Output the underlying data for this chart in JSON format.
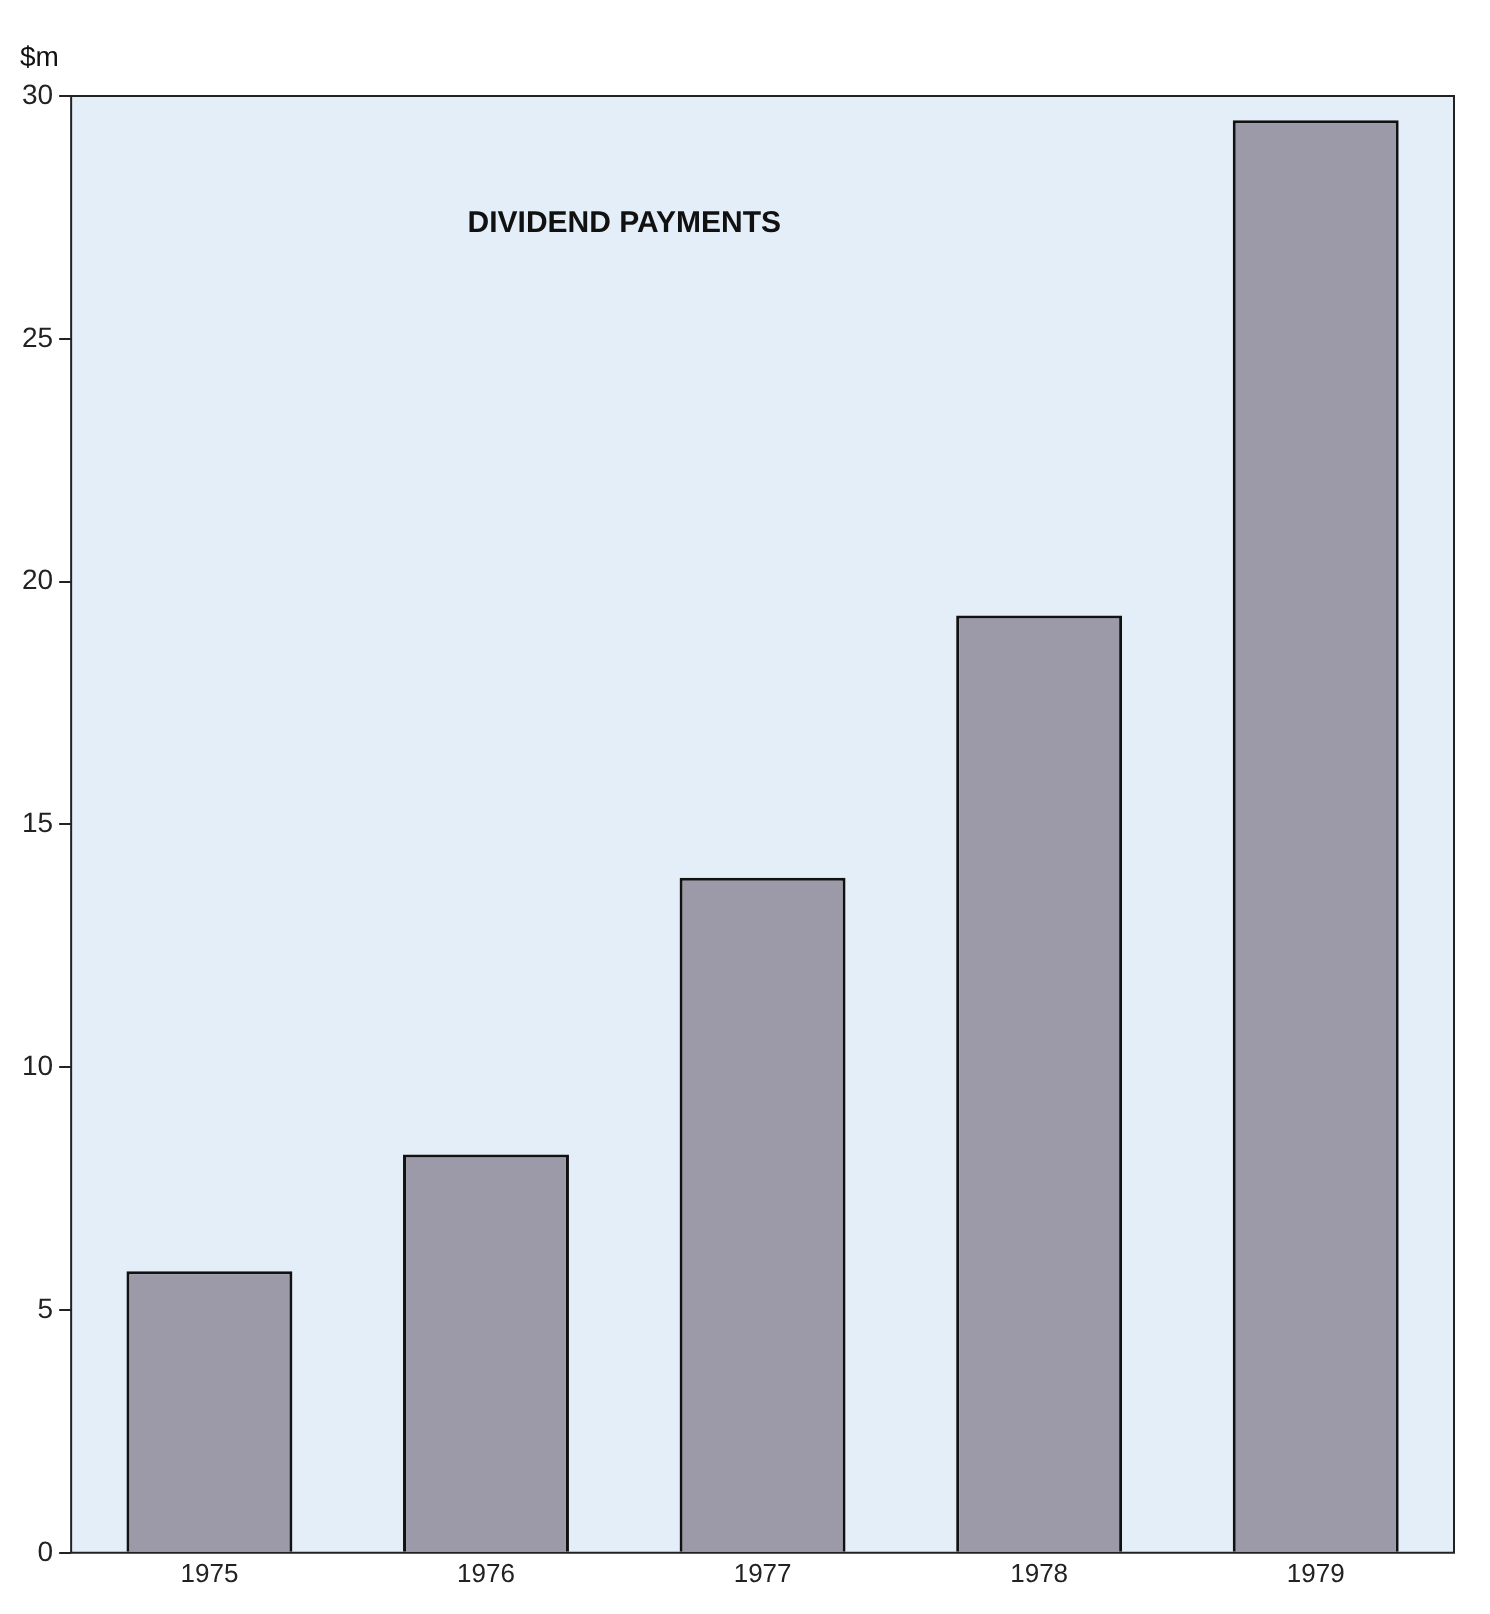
{
  "chart_data": {
    "type": "bar",
    "title": "DIVIDEND PAYMENTS",
    "ylabel": "$m",
    "categories": [
      "1975",
      "1976",
      "1977",
      "1978",
      "1979"
    ],
    "values": [
      5.8,
      8.2,
      13.9,
      19.3,
      29.5
    ],
    "color": "#9c99a9",
    "ylim": [
      0,
      30
    ],
    "yticks": [
      0,
      5,
      10,
      15,
      20,
      25,
      30
    ],
    "grid": false,
    "legend": false
  }
}
